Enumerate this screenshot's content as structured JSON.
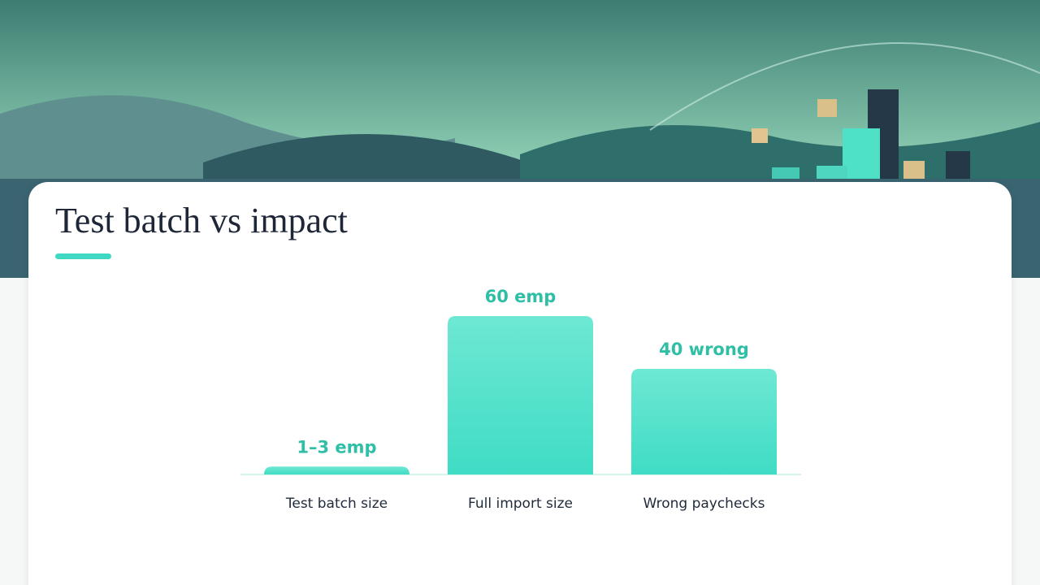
{
  "chart_data": {
    "type": "bar",
    "title": "Test batch vs impact",
    "categories": [
      "Test batch size",
      "Full import size",
      "Wrong paychecks"
    ],
    "values": [
      3,
      60,
      40
    ],
    "value_labels": [
      "1–3 emp",
      "60 emp",
      "40 wrong"
    ],
    "color": "#3fdcc4"
  }
}
